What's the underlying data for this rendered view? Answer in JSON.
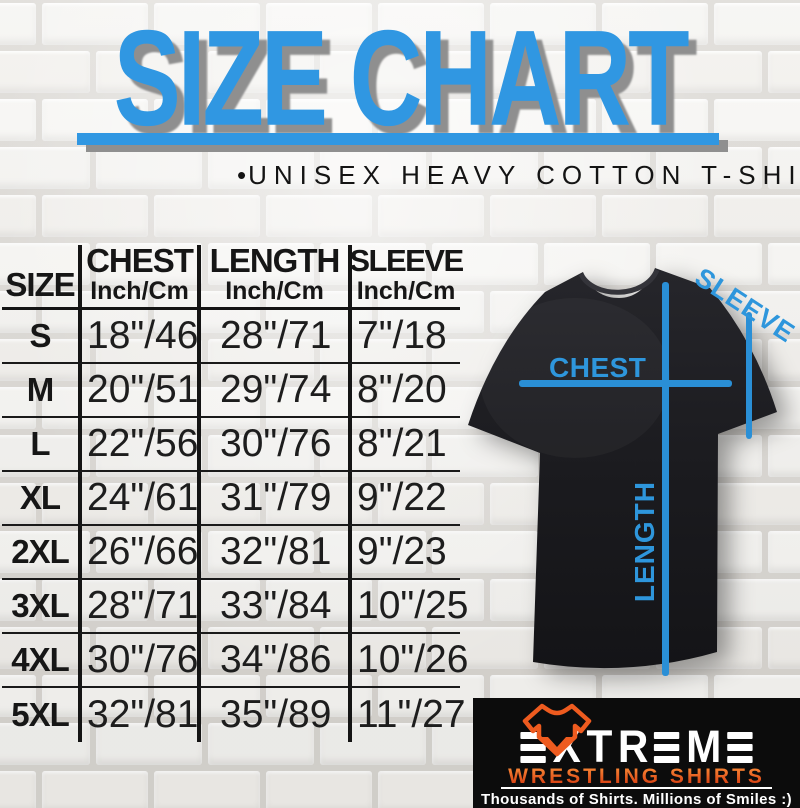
{
  "title": "SIZE CHART",
  "subtitle_bullet": "•",
  "subtitle": "UNISEX HEAVY COTTON T-SHIRT",
  "colors": {
    "accent_blue": "#3097E2",
    "diagram_blue": "#2A8FD6",
    "logo_orange": "#EE5B1F",
    "logo_red": "#D63B10",
    "table_ink": "#141414",
    "shirt_black": "#1C1C20"
  },
  "table": {
    "size_header": "SIZE",
    "unit_label": "Inch/Cm",
    "col_chest": "CHEST",
    "col_length": "LENGTH",
    "col_sleeve": "SLEEVE"
  },
  "diagram": {
    "chest_label": "CHEST",
    "length_label": "LENGTH",
    "sleeve_label": "SLEEVE"
  },
  "logo": {
    "brand": "EXTREME",
    "subbrand": "WRESTLING SHIRTS",
    "tagline": "Thousands of Shirts. Millions of Smiles :)"
  },
  "chart_data": {
    "type": "table",
    "title": "SIZE CHART",
    "subtitle": "UNISEX HEAVY COTTON T-SHIRT",
    "columns": [
      "SIZE",
      "CHEST Inch/Cm",
      "LENGTH Inch/Cm",
      "SLEEVE Inch/Cm"
    ],
    "rows": [
      [
        "S",
        "18\"/46",
        "28\"/71",
        "7\"/18"
      ],
      [
        "M",
        "20\"/51",
        "29\"/74",
        "8\"/20"
      ],
      [
        "L",
        "22\"/56",
        "30\"/76",
        "8\"/21"
      ],
      [
        "XL",
        "24\"/61",
        "31\"/79",
        "9\"/22"
      ],
      [
        "2XL",
        "26\"/66",
        "32\"/81",
        "9\"/23"
      ],
      [
        "3XL",
        "28\"/71",
        "33\"/84",
        "10\"/25"
      ],
      [
        "4XL",
        "30\"/76",
        "34\"/86",
        "10\"/26"
      ],
      [
        "5XL",
        "32\"/81",
        "35\"/89",
        "11\"/27"
      ]
    ]
  }
}
